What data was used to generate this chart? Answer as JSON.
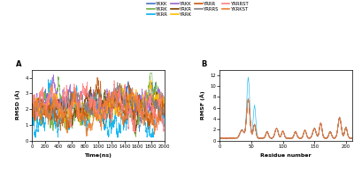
{
  "legend_entries": [
    {
      "label": "YKKK",
      "color": "#4472C4"
    },
    {
      "label": "YKRK",
      "color": "#70AD47"
    },
    {
      "label": "YKRR",
      "color": "#00B0F0"
    },
    {
      "label": "YRKK",
      "color": "#9966CC"
    },
    {
      "label": "YRKR",
      "color": "#7B3F00"
    },
    {
      "label": "YRRK",
      "color": "#FFC000"
    },
    {
      "label": "YRRR",
      "color": "#C55A11"
    },
    {
      "label": "YRRRS",
      "color": "#808080"
    },
    {
      "label": "YRRRST",
      "color": "#FF7F7F"
    },
    {
      "label": "YKRKST",
      "color": "#ED7D31"
    }
  ],
  "panel_A": {
    "xlabel": "Time(ns)",
    "ylabel": "RMSD (Å)",
    "xlim": [
      0,
      2000
    ],
    "ylim": [
      0,
      4.5
    ],
    "xticks": [
      0,
      200,
      400,
      600,
      800,
      1000,
      1200,
      1400,
      1600,
      1800,
      2000
    ],
    "yticks": [
      0,
      1,
      2,
      3,
      4
    ],
    "label": "A"
  },
  "panel_B": {
    "xlabel": "Residue number",
    "ylabel": "RMSF (Å)",
    "xlim": [
      0,
      210
    ],
    "ylim": [
      0,
      13
    ],
    "xticks": [
      0,
      50,
      100,
      150,
      200
    ],
    "yticks": [
      0,
      2,
      4,
      6,
      8,
      10,
      12
    ],
    "label": "B"
  },
  "fig_width": 4.0,
  "fig_height": 2.02,
  "dpi": 100
}
